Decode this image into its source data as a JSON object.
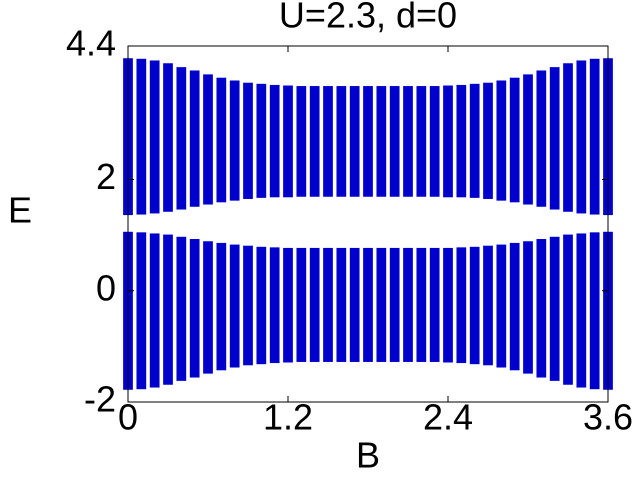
{
  "chart_data": {
    "type": "range",
    "title": "U=2.3, d=0",
    "x_label": "B",
    "y_label": "E",
    "x": [
      0,
      0.1,
      0.2,
      0.3,
      0.4,
      0.5,
      0.6,
      0.7,
      0.8,
      0.9,
      1.0,
      1.1,
      1.2,
      1.3,
      1.4,
      1.5,
      1.6,
      1.7,
      1.8,
      1.9,
      2.0,
      2.1,
      2.2,
      2.3,
      2.4,
      2.5,
      2.6,
      2.7,
      2.8,
      2.9,
      3.0,
      3.1,
      3.2,
      3.3,
      3.4,
      3.5,
      3.6
    ],
    "series": [
      {
        "color": "#0000cc",
        "low": [
          1.36,
          1.37,
          1.39,
          1.42,
          1.46,
          1.51,
          1.55,
          1.59,
          1.62,
          1.65,
          1.67,
          1.68,
          1.68,
          1.69,
          1.69,
          1.69,
          1.69,
          1.69,
          1.69,
          1.69,
          1.69,
          1.69,
          1.69,
          1.69,
          1.68,
          1.68,
          1.67,
          1.65,
          1.62,
          1.59,
          1.55,
          1.51,
          1.46,
          1.42,
          1.39,
          1.37,
          1.36
        ],
        "high": [
          4.18,
          4.17,
          4.14,
          4.09,
          4.02,
          3.96,
          3.89,
          3.83,
          3.78,
          3.74,
          3.72,
          3.7,
          3.69,
          3.68,
          3.68,
          3.68,
          3.68,
          3.68,
          3.68,
          3.68,
          3.68,
          3.68,
          3.68,
          3.68,
          3.69,
          3.7,
          3.72,
          3.74,
          3.78,
          3.83,
          3.89,
          3.96,
          4.02,
          4.09,
          4.14,
          4.17,
          4.18
        ]
      },
      {
        "color": "#0000cc",
        "low": [
          -1.78,
          -1.77,
          -1.74,
          -1.69,
          -1.62,
          -1.56,
          -1.49,
          -1.43,
          -1.38,
          -1.34,
          -1.32,
          -1.3,
          -1.29,
          -1.28,
          -1.28,
          -1.28,
          -1.28,
          -1.28,
          -1.28,
          -1.28,
          -1.28,
          -1.28,
          -1.28,
          -1.28,
          -1.29,
          -1.3,
          -1.32,
          -1.34,
          -1.38,
          -1.43,
          -1.49,
          -1.56,
          -1.62,
          -1.69,
          -1.74,
          -1.77,
          -1.78
        ],
        "high": [
          1.06,
          1.05,
          1.03,
          1.01,
          0.97,
          0.93,
          0.89,
          0.86,
          0.83,
          0.81,
          0.79,
          0.78,
          0.77,
          0.77,
          0.77,
          0.77,
          0.77,
          0.77,
          0.77,
          0.77,
          0.77,
          0.77,
          0.77,
          0.77,
          0.77,
          0.78,
          0.79,
          0.81,
          0.83,
          0.86,
          0.89,
          0.93,
          0.97,
          1.01,
          1.03,
          1.05,
          1.06
        ]
      }
    ],
    "xlim": [
      0,
      3.6
    ],
    "ylim": [
      -2,
      4.4
    ],
    "xticks": [
      0,
      1.2,
      2.4,
      3.6
    ],
    "yticks": [
      -2,
      0,
      2,
      4.4
    ]
  }
}
